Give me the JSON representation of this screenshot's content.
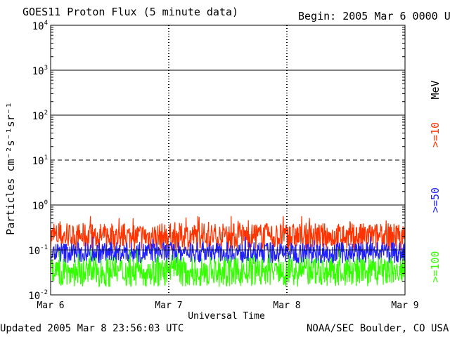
{
  "header": {
    "title": "GOES11 Proton Flux (5 minute data)",
    "begin": "Begin: 2005 Mar 6 0000 UTC"
  },
  "footer": {
    "updated": "Updated 2005 Mar  8 23:56:03 UTC",
    "source": "NOAA/SEC Boulder, CO USA"
  },
  "chart_data": {
    "type": "line",
    "title": "GOES11 Proton Flux (5 minute data)",
    "xlabel": "Universal Time",
    "ylabel": "Particles cm⁻²s⁻¹sr⁻¹",
    "y_scale": "log",
    "ylim": [
      0.01,
      10000
    ],
    "y_ticks": [
      {
        "base": "10",
        "exp": "4",
        "value": 10000
      },
      {
        "base": "10",
        "exp": "3",
        "value": 1000
      },
      {
        "base": "10",
        "exp": "2",
        "value": 100
      },
      {
        "base": "10",
        "exp": "1",
        "value": 10
      },
      {
        "base": "10",
        "exp": "0",
        "value": 1
      },
      {
        "base": "10",
        "exp": "-1",
        "value": 0.1
      },
      {
        "base": "10",
        "exp": "-2",
        "value": 0.01
      }
    ],
    "x_ticks": [
      "Mar 6",
      "Mar 7",
      "Mar 8",
      "Mar 9"
    ],
    "xlim": [
      "2005-03-06 00:00",
      "2005-03-09 00:00"
    ],
    "grid": {
      "solid_levels": [
        1,
        100,
        1000
      ],
      "dashed_levels": [
        10
      ],
      "thin_levels": [
        0.1
      ]
    },
    "legend_unit": "MeV",
    "series": [
      {
        "name": ">=10",
        "color": "#ff3300",
        "typical_range": [
          0.1,
          0.4
        ]
      },
      {
        "name": ">=50",
        "color": "#2020ff",
        "typical_range": [
          0.05,
          0.15
        ]
      },
      {
        "name": ">=100",
        "color": "#33ff00",
        "typical_range": [
          0.015,
          0.07
        ]
      }
    ]
  }
}
